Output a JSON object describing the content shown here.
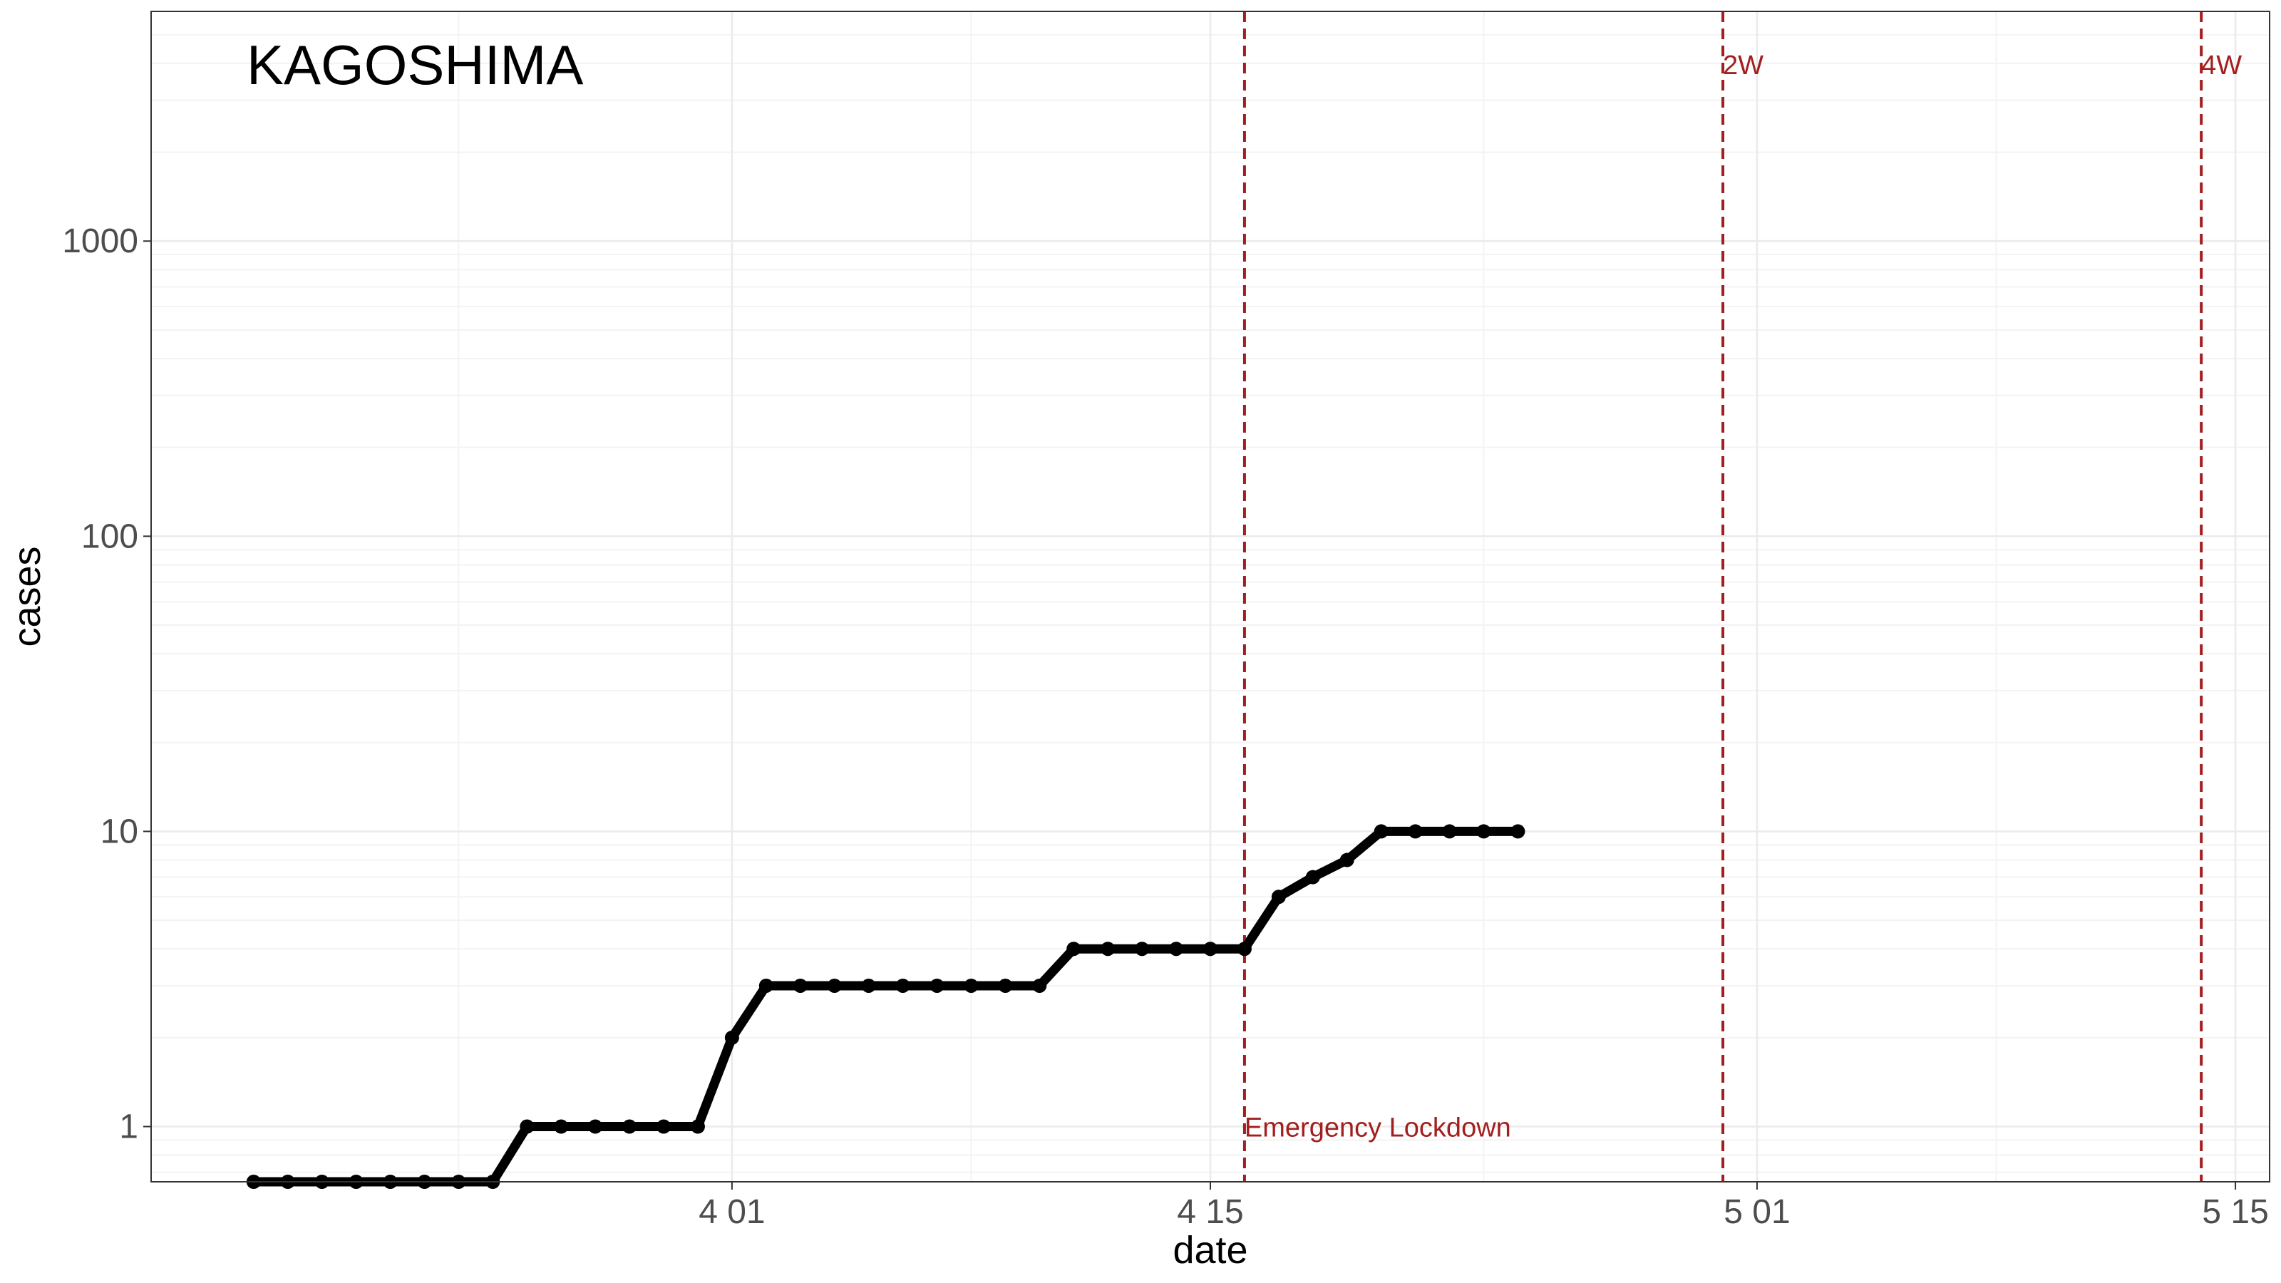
{
  "chart_data": {
    "type": "line",
    "title": "KAGOSHIMA",
    "xlabel": "date",
    "ylabel": "cases",
    "y_scale": "log10",
    "ylim": [
      0.65,
      6000
    ],
    "xlim": [
      "2020-03-15",
      "2020-05-16"
    ],
    "x_ticks": [
      {
        "date": "2020-04-01",
        "label": "4 01"
      },
      {
        "date": "2020-04-15",
        "label": "4 15"
      },
      {
        "date": "2020-05-01",
        "label": "5 01"
      },
      {
        "date": "2020-05-15",
        "label": "5 15"
      }
    ],
    "y_ticks": [
      1,
      10,
      100,
      1000
    ],
    "y_tick_labels": [
      "1",
      "10",
      "100",
      "1000"
    ],
    "grid": true,
    "series": [
      {
        "x": [
          "2020-03-18",
          "2020-03-19",
          "2020-03-20",
          "2020-03-21",
          "2020-03-22",
          "2020-03-23",
          "2020-03-24",
          "2020-03-25",
          "2020-03-26",
          "2020-03-27",
          "2020-03-28",
          "2020-03-29",
          "2020-03-30",
          "2020-03-31",
          "2020-04-01",
          "2020-04-02",
          "2020-04-03",
          "2020-04-04",
          "2020-04-05",
          "2020-04-06",
          "2020-04-07",
          "2020-04-08",
          "2020-04-09",
          "2020-04-10",
          "2020-04-11",
          "2020-04-12",
          "2020-04-13",
          "2020-04-14",
          "2020-04-15",
          "2020-04-16",
          "2020-04-17",
          "2020-04-18",
          "2020-04-19",
          "2020-04-20",
          "2020-04-21",
          "2020-04-22",
          "2020-04-23",
          "2020-04-24"
        ],
        "values": [
          0.65,
          0.65,
          0.65,
          0.65,
          0.65,
          0.65,
          0.65,
          0.65,
          1,
          1,
          1,
          1,
          1,
          1,
          2,
          3,
          3,
          3,
          3,
          3,
          3,
          3,
          3,
          3,
          4,
          4,
          4,
          4,
          4,
          4,
          6,
          7,
          8,
          10,
          10,
          10,
          10,
          10
        ]
      }
    ],
    "annotations": [
      {
        "date": "2020-04-16",
        "label": "Emergency Lockdown",
        "label_pos": "bottom"
      },
      {
        "date": "2020-04-30",
        "label": "2W",
        "label_pos": "top"
      },
      {
        "date": "2020-05-14",
        "label": "4W",
        "label_pos": "top"
      }
    ],
    "colors": {
      "series": "#000000",
      "annotation": "#a31f1f"
    }
  }
}
